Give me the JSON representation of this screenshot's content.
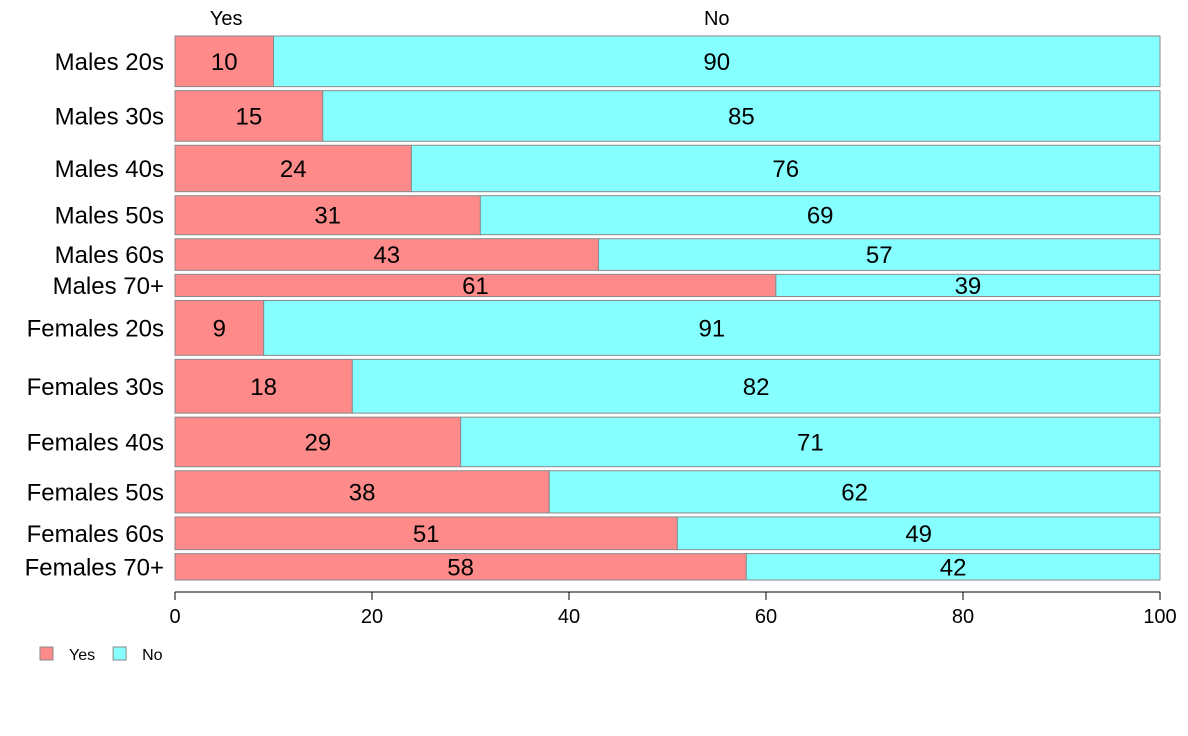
{
  "chart_data": {
    "type": "bar",
    "orientation": "horizontal",
    "stacked": true,
    "categories": [
      "Males 20s",
      "Males 30s",
      "Males 40s",
      "Males 50s",
      "Males 60s",
      "Males 70+",
      "Females 20s",
      "Females 30s",
      "Females 40s",
      "Females 50s",
      "Females 60s",
      "Females 70+"
    ],
    "relative_widths": [
      48,
      48,
      44,
      37,
      30,
      21,
      52,
      51,
      47,
      40,
      31,
      25
    ],
    "series": [
      {
        "name": "Yes",
        "values": [
          10,
          15,
          24,
          31,
          43,
          61,
          9,
          18,
          29,
          38,
          51,
          58
        ],
        "color": "#ff8a8a"
      },
      {
        "name": "No",
        "values": [
          90,
          85,
          76,
          69,
          57,
          39,
          91,
          82,
          71,
          62,
          49,
          42
        ],
        "color": "#85ffff"
      }
    ],
    "top_labels": [
      "Yes",
      "No"
    ],
    "xticks": [
      "0",
      "20",
      "40",
      "60",
      "80",
      "100"
    ],
    "xlim": [
      0,
      100
    ],
    "grid": false,
    "legend_position": "bottom-left",
    "title": "",
    "xlabel": "",
    "ylabel": ""
  }
}
